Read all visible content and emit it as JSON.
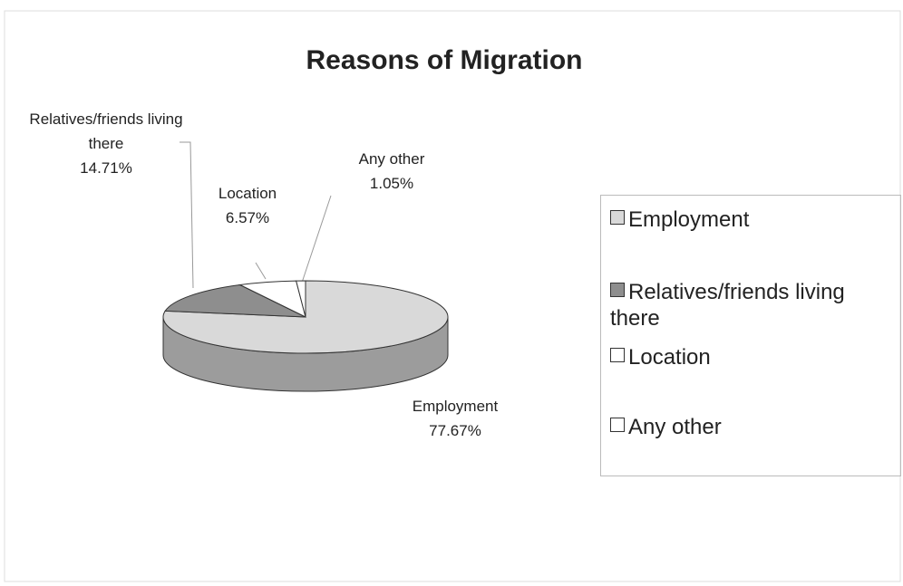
{
  "chart_data": {
    "type": "pie3d",
    "title": "Reasons of Migration",
    "categories": [
      "Employment",
      "Relatives/friends living there",
      "Location",
      "Any other"
    ],
    "values": [
      77.67,
      14.71,
      6.57,
      1.05
    ],
    "value_labels": [
      "77.67%",
      "14.71%",
      "6.57%",
      "1.05%"
    ],
    "colors": [
      "#d9d9d9",
      "#8e8e8e",
      "#ffffff",
      "#ffffff"
    ],
    "legend": "right"
  }
}
